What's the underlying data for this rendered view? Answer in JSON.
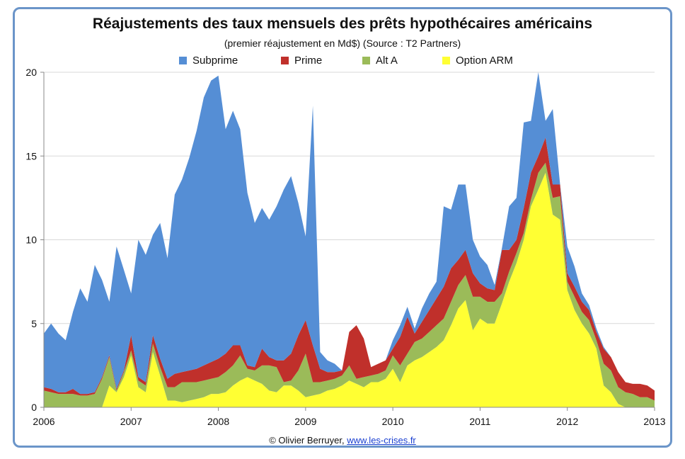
{
  "chart_data": {
    "type": "area",
    "stacked": true,
    "title": "Réajustements des taux mensuels des prêts hypothécaires américains",
    "subtitle": "(premier réajustement en Md$) (Source : T2 Partners)",
    "xlabel": "",
    "ylabel": "",
    "xlim": [
      2006,
      2013
    ],
    "ylim": [
      0,
      20
    ],
    "x_ticks": [
      "2006",
      "2007",
      "2008",
      "2009",
      "2010",
      "2011",
      "2012",
      "2013"
    ],
    "y_ticks": [
      "0",
      "5",
      "10",
      "15",
      "20"
    ],
    "grid": "horizontal",
    "legend_position": "top",
    "x": [
      2006.0,
      2006.083,
      2006.167,
      2006.25,
      2006.333,
      2006.417,
      2006.5,
      2006.583,
      2006.667,
      2006.75,
      2006.833,
      2006.917,
      2007.0,
      2007.083,
      2007.167,
      2007.25,
      2007.333,
      2007.417,
      2007.5,
      2007.583,
      2007.667,
      2007.75,
      2007.833,
      2007.917,
      2008.0,
      2008.083,
      2008.167,
      2008.25,
      2008.333,
      2008.417,
      2008.5,
      2008.583,
      2008.667,
      2008.75,
      2008.833,
      2008.917,
      2009.0,
      2009.083,
      2009.167,
      2009.25,
      2009.333,
      2009.417,
      2009.5,
      2009.583,
      2009.667,
      2009.75,
      2009.833,
      2009.917,
      2010.0,
      2010.083,
      2010.167,
      2010.25,
      2010.333,
      2010.417,
      2010.5,
      2010.583,
      2010.667,
      2010.75,
      2010.833,
      2010.917,
      2011.0,
      2011.083,
      2011.167,
      2011.25,
      2011.333,
      2011.417,
      2011.5,
      2011.583,
      2011.667,
      2011.75,
      2011.833,
      2011.917,
      2012.0,
      2012.083,
      2012.167,
      2012.25,
      2012.333,
      2012.417,
      2012.5,
      2012.583,
      2012.667,
      2012.75,
      2012.833,
      2012.917,
      2013.0
    ],
    "series": [
      {
        "name": "Option ARM",
        "color": "#ffff33",
        "values": [
          0,
          0,
          0,
          0,
          0,
          0,
          0,
          0,
          0,
          1.3,
          0.9,
          1.8,
          3.1,
          1.2,
          0.9,
          3.3,
          1.9,
          0.4,
          0.4,
          0.3,
          0.4,
          0.5,
          0.6,
          0.8,
          0.8,
          0.9,
          1.3,
          1.6,
          1.8,
          1.6,
          1.4,
          1.0,
          0.9,
          1.3,
          1.3,
          1.0,
          0.6,
          0.7,
          0.8,
          1.0,
          1.1,
          1.3,
          1.6,
          1.4,
          1.2,
          1.5,
          1.5,
          1.7,
          2.3,
          1.5,
          2.5,
          2.8,
          3.0,
          3.3,
          3.6,
          4.0,
          4.9,
          5.9,
          6.4,
          4.6,
          5.3,
          5.0,
          5.0,
          6.2,
          7.5,
          8.6,
          10.0,
          12.0,
          13.0,
          14.0,
          11.5,
          11.2,
          7.0,
          5.8,
          5.0,
          4.4,
          3.5,
          1.3,
          0.9,
          0.2,
          0.0,
          0,
          0,
          0,
          0
        ]
      },
      {
        "name": "Alt A",
        "color": "#9bbb59",
        "values": [
          1.0,
          0.9,
          0.8,
          0.8,
          0.8,
          0.7,
          0.7,
          0.8,
          1.7,
          1.7,
          0.1,
          0.3,
          0.3,
          0.4,
          0.4,
          0.5,
          0.5,
          0.8,
          0.8,
          1.2,
          1.1,
          1.0,
          1.0,
          0.9,
          1.0,
          1.2,
          1.2,
          1.5,
          0.5,
          0.6,
          1.1,
          1.5,
          1.5,
          0.2,
          0.3,
          1.2,
          2.6,
          0.8,
          0.7,
          0.6,
          0.6,
          0.6,
          0.9,
          0.3,
          0.6,
          0.4,
          0.5,
          0.5,
          0.8,
          1.0,
          0.7,
          1.1,
          1.1,
          1.2,
          1.3,
          1.3,
          1.4,
          1.4,
          1.5,
          2.0,
          1.3,
          1.3,
          1.3,
          0.6,
          0.6,
          0.6,
          0.4,
          0.4,
          1.0,
          0.6,
          1.0,
          1.4,
          0.5,
          0.8,
          0.7,
          0.8,
          0.5,
          1.3,
          1.3,
          1.0,
          0.9,
          0.8,
          0.6,
          0.6,
          0.4
        ]
      },
      {
        "name": "Prime",
        "color": "#c0302b",
        "values": [
          0.2,
          0.2,
          0.1,
          0.1,
          0.3,
          0.1,
          0.1,
          0.1,
          0.1,
          0.1,
          0.1,
          0.1,
          0.9,
          0.2,
          0.2,
          0.5,
          0.5,
          0.5,
          0.8,
          0.6,
          0.7,
          0.8,
          0.9,
          1.0,
          1.1,
          1.1,
          1.2,
          0.6,
          0.2,
          0.2,
          1.0,
          0.5,
          0.4,
          1.3,
          1.6,
          2.1,
          2.0,
          2.2,
          0.8,
          0.5,
          0.4,
          0.3,
          2.0,
          3.2,
          2.3,
          0.5,
          0.6,
          0.6,
          0.4,
          1.7,
          2.2,
          0.5,
          1.0,
          1.3,
          1.6,
          1.9,
          2.0,
          1.5,
          1.5,
          1.4,
          0.8,
          0.8,
          0.7,
          2.6,
          1.3,
          0.8,
          1.5,
          1.6,
          1.0,
          1.5,
          0.8,
          0.7,
          0.5,
          0.6,
          0.6,
          0.6,
          0.5,
          0.9,
          0.8,
          0.9,
          0.6,
          0.6,
          0.8,
          0.7,
          0.6
        ]
      },
      {
        "name": "Subprime",
        "color": "#558ed5",
        "values": [
          3.2,
          3.9,
          3.5,
          3.1,
          4.6,
          6.3,
          5.5,
          7.6,
          5.8,
          3.2,
          8.5,
          6.0,
          2.5,
          8.2,
          7.6,
          6.0,
          8.1,
          7.2,
          10.7,
          11.5,
          12.7,
          14.2,
          16.0,
          16.8,
          16.9,
          13.4,
          14.0,
          12.9,
          10.3,
          8.6,
          8.4,
          8.2,
          9.2,
          10.2,
          10.6,
          7.9,
          5.0,
          14.3,
          1.0,
          0.7,
          0.5,
          0,
          0,
          0,
          0,
          0,
          0,
          0,
          0.5,
          0.7,
          0.6,
          0.3,
          0.8,
          1.0,
          1.0,
          4.8,
          3.5,
          4.5,
          3.9,
          2.0,
          1.6,
          1.4,
          0.3,
          0.1,
          2.6,
          2.5,
          5.1,
          3.1,
          5.0,
          1.0,
          4.5,
          0.0,
          1.6,
          1.2,
          0.5,
          0.3,
          0.2,
          0.1,
          0,
          0,
          0,
          0,
          0,
          0,
          0
        ]
      }
    ]
  },
  "footer": {
    "credit": "© Olivier Berruyer,",
    "link": "www.les-crises.fr"
  }
}
